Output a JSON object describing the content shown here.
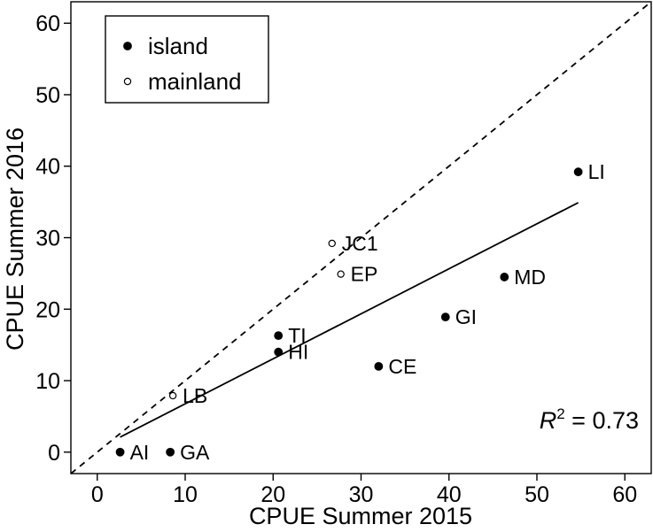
{
  "chart_data": {
    "type": "scatter",
    "xlabel": "CPUE Summer 2015",
    "ylabel": "CPUE Summer 2016",
    "xlim": [
      -3,
      63
    ],
    "ylim": [
      -3,
      63
    ],
    "xticks": [
      0,
      10,
      20,
      30,
      40,
      50,
      60
    ],
    "yticks": [
      0,
      10,
      20,
      30,
      40,
      50,
      60
    ],
    "grid": false,
    "legend": {
      "position": "top-left",
      "entries": [
        {
          "name": "island",
          "marker": "filled-circle"
        },
        {
          "name": "mainland",
          "marker": "open-circle"
        }
      ]
    },
    "series": [
      {
        "name": "island",
        "marker": "filled-circle",
        "points": [
          {
            "label": "LI",
            "x": 54.7,
            "y": 39.2
          },
          {
            "label": "MD",
            "x": 46.3,
            "y": 24.5
          },
          {
            "label": "GI",
            "x": 39.6,
            "y": 18.9
          },
          {
            "label": "CE",
            "x": 32.0,
            "y": 12.0
          },
          {
            "label": "TI",
            "x": 20.6,
            "y": 16.3
          },
          {
            "label": "HI",
            "x": 20.6,
            "y": 14.0
          },
          {
            "label": "AI",
            "x": 2.6,
            "y": 0.0
          },
          {
            "label": "GA",
            "x": 8.3,
            "y": 0.0
          }
        ]
      },
      {
        "name": "mainland",
        "marker": "open-circle",
        "points": [
          {
            "label": "JC1",
            "x": 26.7,
            "y": 29.2
          },
          {
            "label": "EP",
            "x": 27.7,
            "y": 24.9
          },
          {
            "label": "LB",
            "x": 8.6,
            "y": 7.9
          }
        ]
      }
    ],
    "lines": [
      {
        "style": "dashed",
        "from": [
          -3,
          -3
        ],
        "to": [
          63,
          63
        ]
      },
      {
        "style": "solid",
        "from": [
          2.6,
          2.1
        ],
        "to": [
          54.7,
          34.9
        ]
      }
    ],
    "annotation": {
      "italic_part": "R",
      "superscript": "2",
      "rest": " = 0.73"
    }
  }
}
